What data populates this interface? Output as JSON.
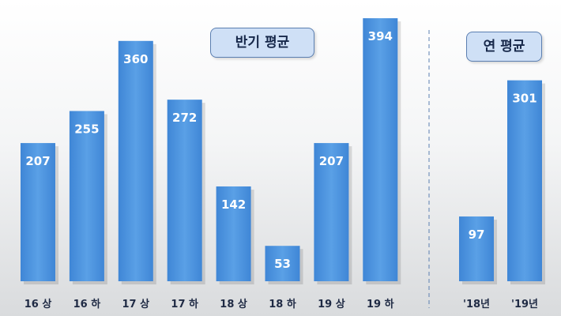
{
  "chart_data": [
    {
      "type": "bar",
      "title": "반기 평균",
      "categories": [
        "16 상",
        "16 하",
        "17 상",
        "17 하",
        "18 상",
        "18 하",
        "19 상",
        "19 하"
      ],
      "values": [
        207,
        255,
        360,
        272,
        142,
        53,
        207,
        394
      ],
      "data_labels": [
        "207",
        "255",
        "360",
        "272",
        "142",
        "53",
        "207",
        "394"
      ],
      "ylim": [
        0,
        400
      ],
      "grid": false,
      "bar_color": "#4a90d9"
    },
    {
      "type": "bar",
      "title": "연 평균",
      "categories": [
        "'18년",
        "'19년"
      ],
      "values": [
        97,
        301
      ],
      "data_labels": [
        "97",
        "301"
      ],
      "ylim": [
        0,
        400
      ],
      "grid": false,
      "bar_color": "#4a90d9"
    }
  ]
}
